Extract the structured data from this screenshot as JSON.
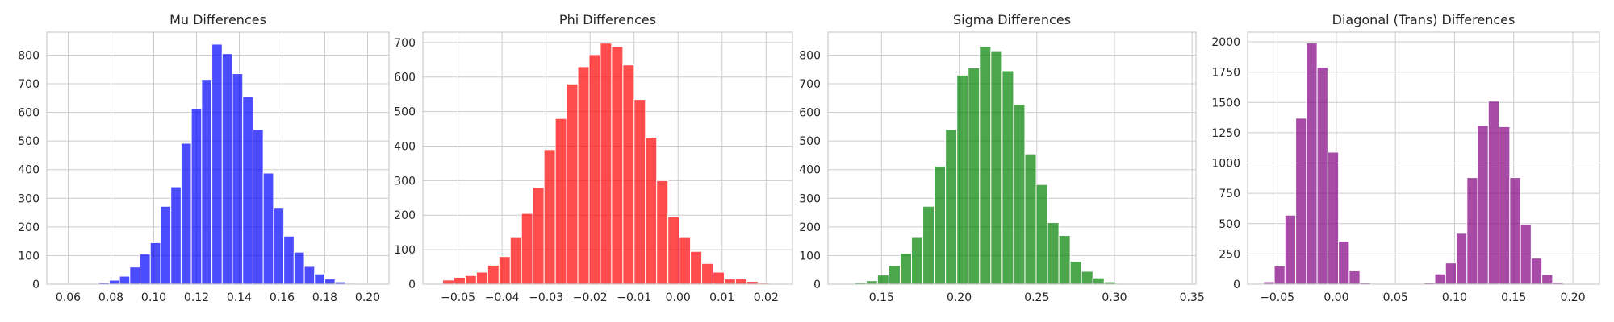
{
  "chart_data": [
    {
      "type": "bar",
      "title": "Mu Differences",
      "xlabel": "",
      "ylabel": "",
      "color": "#0000ff",
      "xlim": [
        0.05,
        0.21
      ],
      "ylim": [
        0,
        880
      ],
      "xticks": [
        0.06,
        0.08,
        0.1,
        0.12,
        0.14,
        0.16,
        0.18,
        0.2
      ],
      "xtick_labels": [
        "0.06",
        "0.08",
        "0.10",
        "0.12",
        "0.14",
        "0.16",
        "0.18",
        "0.20"
      ],
      "yticks": [
        0,
        100,
        200,
        300,
        400,
        500,
        600,
        700,
        800
      ],
      "ytick_labels": [
        "0",
        "100",
        "200",
        "300",
        "400",
        "500",
        "600",
        "700",
        "800"
      ],
      "grid": true,
      "bin_width": 0.0048,
      "bin_starts": [
        0.06,
        0.0648,
        0.0696,
        0.0744,
        0.0792,
        0.084,
        0.0888,
        0.0936,
        0.0984,
        0.1032,
        0.108,
        0.1128,
        0.1176,
        0.1224,
        0.1272,
        0.132,
        0.1368,
        0.1416,
        0.1464,
        0.1512,
        0.156,
        0.1608,
        0.1656,
        0.1704,
        0.1752,
        0.18,
        0.1848,
        0.1896,
        0.1944
      ],
      "values": [
        1,
        1,
        2,
        5,
        14,
        28,
        60,
        105,
        145,
        272,
        340,
        492,
        612,
        715,
        838,
        805,
        735,
        655,
        540,
        388,
        265,
        168,
        112,
        62,
        36,
        18,
        8,
        3,
        1
      ]
    },
    {
      "type": "bar",
      "title": "Phi Differences",
      "xlabel": "",
      "ylabel": "",
      "color": "#ff0000",
      "xlim": [
        -0.058,
        0.026
      ],
      "ylim": [
        0,
        730
      ],
      "xticks": [
        -0.05,
        -0.04,
        -0.03,
        -0.02,
        -0.01,
        0.0,
        0.01,
        0.02
      ],
      "xtick_labels": [
        "−0.05",
        "−0.04",
        "−0.03",
        "−0.02",
        "−0.01",
        "0.00",
        "0.01",
        "0.02"
      ],
      "yticks": [
        0,
        100,
        200,
        300,
        400,
        500,
        600,
        700
      ],
      "ytick_labels": [
        "0",
        "100",
        "200",
        "300",
        "400",
        "500",
        "600",
        "700"
      ],
      "grid": true,
      "bin_width": 0.00256,
      "bin_starts": [
        -0.0535,
        -0.05094,
        -0.04838,
        -0.04582,
        -0.04326,
        -0.0407,
        -0.03814,
        -0.03558,
        -0.03302,
        -0.03046,
        -0.0279,
        -0.02534,
        -0.02278,
        -0.02022,
        -0.01766,
        -0.0151,
        -0.01254,
        -0.00998,
        -0.00742,
        -0.00486,
        -0.0023,
        0.00026,
        0.00282,
        0.00538,
        0.00794,
        0.0105,
        0.01306,
        0.01562,
        0.01818
      ],
      "values": [
        12,
        20,
        25,
        35,
        55,
        80,
        135,
        205,
        280,
        390,
        480,
        580,
        630,
        665,
        698,
        688,
        635,
        535,
        425,
        300,
        195,
        135,
        95,
        60,
        35,
        15,
        15,
        8,
        3
      ]
    },
    {
      "type": "bar",
      "title": "Sigma Differences",
      "xlabel": "",
      "ylabel": "",
      "color": "#008000",
      "xlim": [
        0.1155,
        0.3525
      ],
      "ylim": [
        0,
        880
      ],
      "xticks": [
        0.15,
        0.2,
        0.25,
        0.3,
        0.35
      ],
      "xtick_labels": [
        "0.15",
        "0.20",
        "0.25",
        "0.30",
        "0.35"
      ],
      "yticks": [
        0,
        100,
        200,
        300,
        400,
        500,
        600,
        700,
        800
      ],
      "ytick_labels": [
        "0",
        "100",
        "200",
        "300",
        "400",
        "500",
        "600",
        "700",
        "800"
      ],
      "grid": true,
      "bin_width": 0.0073,
      "bin_starts": [
        0.1255,
        0.1328,
        0.1401,
        0.1474,
        0.1547,
        0.162,
        0.1693,
        0.1766,
        0.1839,
        0.1912,
        0.1985,
        0.2058,
        0.2131,
        0.2204,
        0.2277,
        0.235,
        0.2423,
        0.2496,
        0.2569,
        0.2642,
        0.2715,
        0.2788,
        0.2861,
        0.2934,
        0.3007,
        0.308,
        0.3153,
        0.3226,
        0.3299
      ],
      "values": [
        2,
        5,
        12,
        32,
        65,
        108,
        163,
        272,
        412,
        540,
        730,
        755,
        830,
        815,
        745,
        628,
        455,
        348,
        215,
        170,
        80,
        45,
        22,
        8,
        3,
        1,
        0,
        0,
        1
      ]
    },
    {
      "type": "bar",
      "title": "Diagonal (Trans) Differences",
      "xlabel": "",
      "ylabel": "",
      "color": "#800080",
      "xlim": [
        -0.075,
        0.2225
      ],
      "ylim": [
        0,
        2080
      ],
      "xticks": [
        -0.05,
        0.0,
        0.05,
        0.1,
        0.15,
        0.2
      ],
      "xtick_labels": [
        "−0.05",
        "0.00",
        "0.05",
        "0.10",
        "0.15",
        "0.20"
      ],
      "yticks": [
        0,
        250,
        500,
        750,
        1000,
        1250,
        1500,
        1750,
        2000
      ],
      "ytick_labels": [
        "0",
        "250",
        "500",
        "750",
        "1000",
        "1250",
        "1500",
        "1750",
        "2000"
      ],
      "grid": true,
      "bin_width": 0.00905,
      "bin_starts": [
        -0.0615,
        -0.05245,
        -0.0434,
        -0.03435,
        -0.0253,
        -0.01625,
        -0.0072,
        0.00185,
        0.0109,
        0.01995,
        0.029,
        0.03805,
        0.0471,
        0.05615,
        0.0652,
        0.07425,
        0.0833,
        0.09235,
        0.1014,
        0.11045,
        0.1195,
        0.12855,
        0.1376,
        0.14665,
        0.1557,
        0.16475,
        0.1738,
        0.18285,
        0.1919
      ],
      "values": [
        20,
        150,
        570,
        1370,
        1990,
        1790,
        1090,
        355,
        110,
        10,
        2,
        1,
        1,
        2,
        5,
        10,
        85,
        175,
        420,
        880,
        1310,
        1510,
        1300,
        880,
        490,
        215,
        80,
        15,
        3
      ]
    }
  ]
}
